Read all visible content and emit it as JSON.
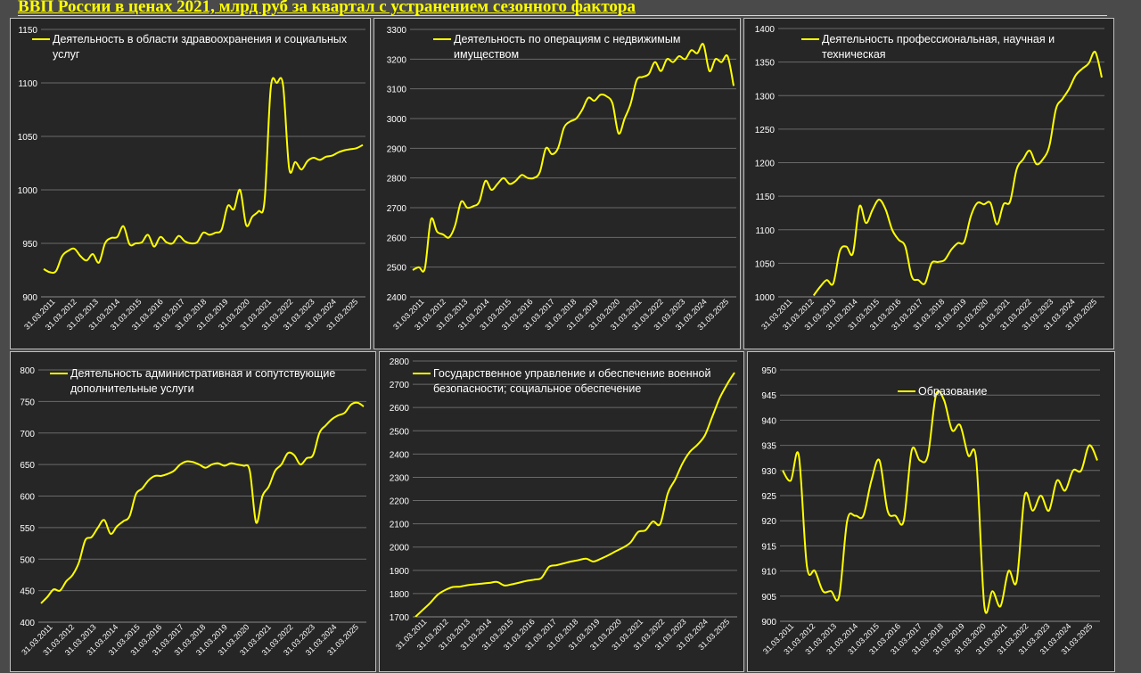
{
  "page": {
    "title": "ВВП России в ценах 2021, млрд руб за квартал с устранением сезонного фактора"
  },
  "style": {
    "line_color": "#ffff00",
    "plot_bg": "#262626",
    "panel_bg": "#262626",
    "border": "#bfbfbf",
    "grid": "#6a6a6a",
    "text": "#ffffff"
  },
  "x_tick_labels": [
    "31.03.2011",
    "31.03.2012",
    "31.03.2013",
    "31.03.2014",
    "31.03.2015",
    "31.03.2016",
    "31.03.2017",
    "31.03.2018",
    "31.03.2019",
    "31.03.2020",
    "31.03.2021",
    "31.03.2022",
    "31.03.2023",
    "31.03.2024",
    "31.03.2025"
  ],
  "chart_data": [
    {
      "type": "line",
      "legend": [
        "Деятельность в области здравоохранения и социальных",
        "услуг"
      ],
      "ylim": [
        900,
        1150
      ],
      "yticks": [
        900,
        950,
        1000,
        1050,
        1100,
        1150
      ],
      "x_start": "2011-Q1",
      "x_step": "quarter",
      "values": [
        926,
        923,
        924,
        938,
        943,
        945,
        938,
        934,
        940,
        932,
        950,
        955,
        956,
        966,
        949,
        950,
        951,
        958,
        947,
        956,
        951,
        950,
        957,
        952,
        950,
        951,
        960,
        958,
        960,
        963,
        985,
        982,
        1000,
        967,
        975,
        980,
        990,
        1095,
        1100,
        1098,
        1020,
        1026,
        1019,
        1027,
        1030,
        1028,
        1031,
        1032,
        1035,
        1037,
        1038,
        1039,
        1042
      ]
    },
    {
      "type": "line",
      "legend": [
        "Деятельность по операциям с недвижимым",
        "имуществом"
      ],
      "ylim": [
        2400,
        3300
      ],
      "yticks": [
        2400,
        2500,
        2600,
        2700,
        2800,
        2900,
        3000,
        3100,
        3200,
        3300
      ],
      "x_start": "2011-Q1",
      "x_step": "quarter",
      "values": [
        2490,
        2500,
        2495,
        2660,
        2620,
        2610,
        2600,
        2640,
        2720,
        2700,
        2705,
        2720,
        2790,
        2760,
        2780,
        2800,
        2780,
        2790,
        2810,
        2800,
        2800,
        2820,
        2900,
        2880,
        2900,
        2970,
        2990,
        3000,
        3030,
        3070,
        3060,
        3080,
        3075,
        3050,
        2950,
        3000,
        3050,
        3130,
        3140,
        3150,
        3190,
        3160,
        3200,
        3190,
        3210,
        3200,
        3230,
        3220,
        3250,
        3160,
        3200,
        3190,
        3210,
        3110
      ]
    },
    {
      "type": "line",
      "legend": [
        "Деятельность профессиональная, научная и",
        "техническая"
      ],
      "ylim": [
        1000,
        1400
      ],
      "yticks": [
        1000,
        1050,
        1100,
        1150,
        1200,
        1250,
        1300,
        1350,
        1400
      ],
      "x_start": "2011-Q1",
      "x_step": "quarter",
      "values": [
        null,
        null,
        null,
        null,
        null,
        1002,
        1015,
        1025,
        1020,
        1068,
        1075,
        1065,
        1135,
        1110,
        1130,
        1145,
        1130,
        1100,
        1085,
        1075,
        1030,
        1025,
        1020,
        1050,
        1052,
        1055,
        1070,
        1080,
        1082,
        1120,
        1140,
        1138,
        1140,
        1108,
        1138,
        1142,
        1190,
        1205,
        1218,
        1198,
        1205,
        1225,
        1280,
        1295,
        1310,
        1330,
        1340,
        1348,
        1365,
        1327
      ]
    },
    {
      "type": "line",
      "legend": [
        "Деятельность административная и сопутствующие",
        "дополнительные услуги"
      ],
      "ylim": [
        400,
        800
      ],
      "yticks": [
        400,
        450,
        500,
        550,
        600,
        650,
        700,
        750,
        800
      ],
      "x_start": "2011-Q1",
      "x_step": "quarter",
      "values": [
        430,
        440,
        452,
        450,
        465,
        475,
        495,
        530,
        535,
        550,
        562,
        540,
        552,
        560,
        568,
        603,
        612,
        625,
        632,
        632,
        635,
        640,
        650,
        655,
        654,
        650,
        645,
        650,
        652,
        648,
        652,
        650,
        648,
        640,
        558,
        600,
        615,
        640,
        650,
        668,
        665,
        650,
        660,
        665,
        700,
        712,
        722,
        728,
        732,
        745,
        748,
        742
      ]
    },
    {
      "type": "line",
      "legend": [
        "Государственное управление и обеспечение военной",
        "безопасности; социальное обеспечение"
      ],
      "ylim": [
        1700,
        2800
      ],
      "yticks": [
        1700,
        1800,
        1900,
        2000,
        2100,
        2200,
        2300,
        2400,
        2500,
        2600,
        2700,
        2800
      ],
      "x_start": "2011-Q1",
      "x_step": "quarter",
      "values": [
        1700,
        1730,
        1760,
        1795,
        1815,
        1828,
        1830,
        1836,
        1840,
        1843,
        1846,
        1850,
        1835,
        1840,
        1847,
        1855,
        1860,
        1868,
        1915,
        1922,
        1930,
        1938,
        1944,
        1950,
        1938,
        1950,
        1965,
        1982,
        1998,
        2020,
        2065,
        2072,
        2110,
        2100,
        2230,
        2290,
        2360,
        2410,
        2440,
        2480,
        2560,
        2640,
        2700,
        2750
      ]
    },
    {
      "type": "line",
      "legend": [
        "Образование"
      ],
      "ylim": [
        900,
        950
      ],
      "yticks": [
        900,
        905,
        910,
        915,
        920,
        925,
        930,
        935,
        940,
        945,
        950
      ],
      "x_start": "2011-Q1",
      "x_step": "quarter",
      "values": [
        930,
        928,
        933,
        911,
        910,
        906,
        906,
        905,
        920,
        921,
        921,
        928,
        932,
        922,
        921,
        920,
        934,
        932,
        933,
        945,
        944,
        938,
        939,
        933,
        932,
        903,
        906,
        903,
        910,
        908,
        925,
        922,
        925,
        922,
        928,
        926,
        930,
        930,
        935,
        932
      ]
    }
  ]
}
